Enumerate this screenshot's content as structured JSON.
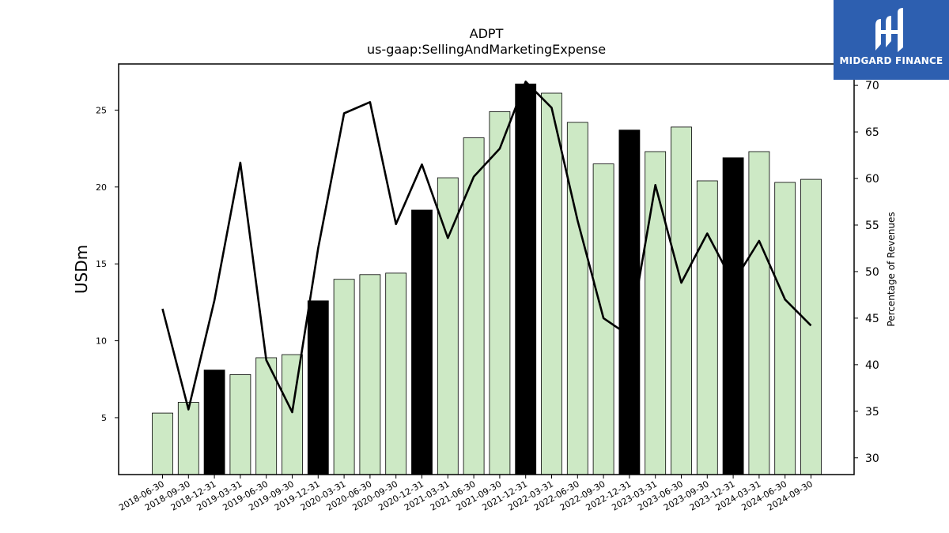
{
  "brand": {
    "name": "MIDGARD FINANCE",
    "logo_icon": "mf-monogram-icon",
    "color": "#2d5fb0"
  },
  "chart_data": {
    "type": "bar",
    "title": "ADPT",
    "subtitle": "us-gaap:SellingAndMarketingExpense",
    "ylabel": "USDm",
    "y2label": "Percentage of Revenues",
    "ylim": [
      1.3,
      28.0
    ],
    "y2lim": [
      28.2,
      72.3
    ],
    "yticks": [
      5,
      10,
      15,
      20,
      25
    ],
    "y2ticks": [
      30,
      35,
      40,
      45,
      50,
      55,
      60,
      65,
      70
    ],
    "colors": {
      "bar_default": "#cde9c5",
      "bar_highlight": "#000000",
      "line": "#000000"
    },
    "categories": [
      "2018-06-30",
      "2018-09-30",
      "2018-12-31",
      "2019-03-31",
      "2019-06-30",
      "2019-09-30",
      "2019-12-31",
      "2020-03-31",
      "2020-06-30",
      "2020-09-30",
      "2020-12-31",
      "2021-03-31",
      "2021-06-30",
      "2021-09-30",
      "2021-12-31",
      "2022-03-31",
      "2022-06-30",
      "2022-09-30",
      "2022-12-31",
      "2023-03-31",
      "2023-06-30",
      "2023-09-30",
      "2023-12-31",
      "2024-03-31",
      "2024-06-30",
      "2024-09-30"
    ],
    "series": [
      {
        "kind": "bar",
        "axis": "left",
        "values": [
          5.3,
          6.0,
          8.1,
          7.8,
          8.9,
          9.1,
          12.6,
          14.0,
          14.3,
          14.4,
          18.5,
          20.6,
          23.2,
          24.9,
          26.7,
          26.1,
          24.2,
          21.5,
          23.7,
          22.3,
          23.9,
          20.4,
          21.9,
          22.3,
          20.3,
          20.5
        ],
        "highlight": [
          false,
          false,
          true,
          false,
          false,
          false,
          true,
          false,
          false,
          false,
          true,
          false,
          false,
          false,
          true,
          false,
          false,
          false,
          true,
          false,
          false,
          false,
          true,
          false,
          false,
          false
        ]
      },
      {
        "kind": "line",
        "axis": "right",
        "values": [
          46.0,
          35.2,
          46.9,
          61.7,
          40.5,
          34.9,
          52.5,
          67.0,
          68.2,
          55.1,
          61.5,
          53.6,
          60.2,
          63.2,
          70.4,
          67.6,
          55.5,
          45.0,
          43.1,
          59.3,
          48.8,
          54.1,
          48.8,
          53.3,
          47.0,
          44.2
        ]
      }
    ]
  }
}
